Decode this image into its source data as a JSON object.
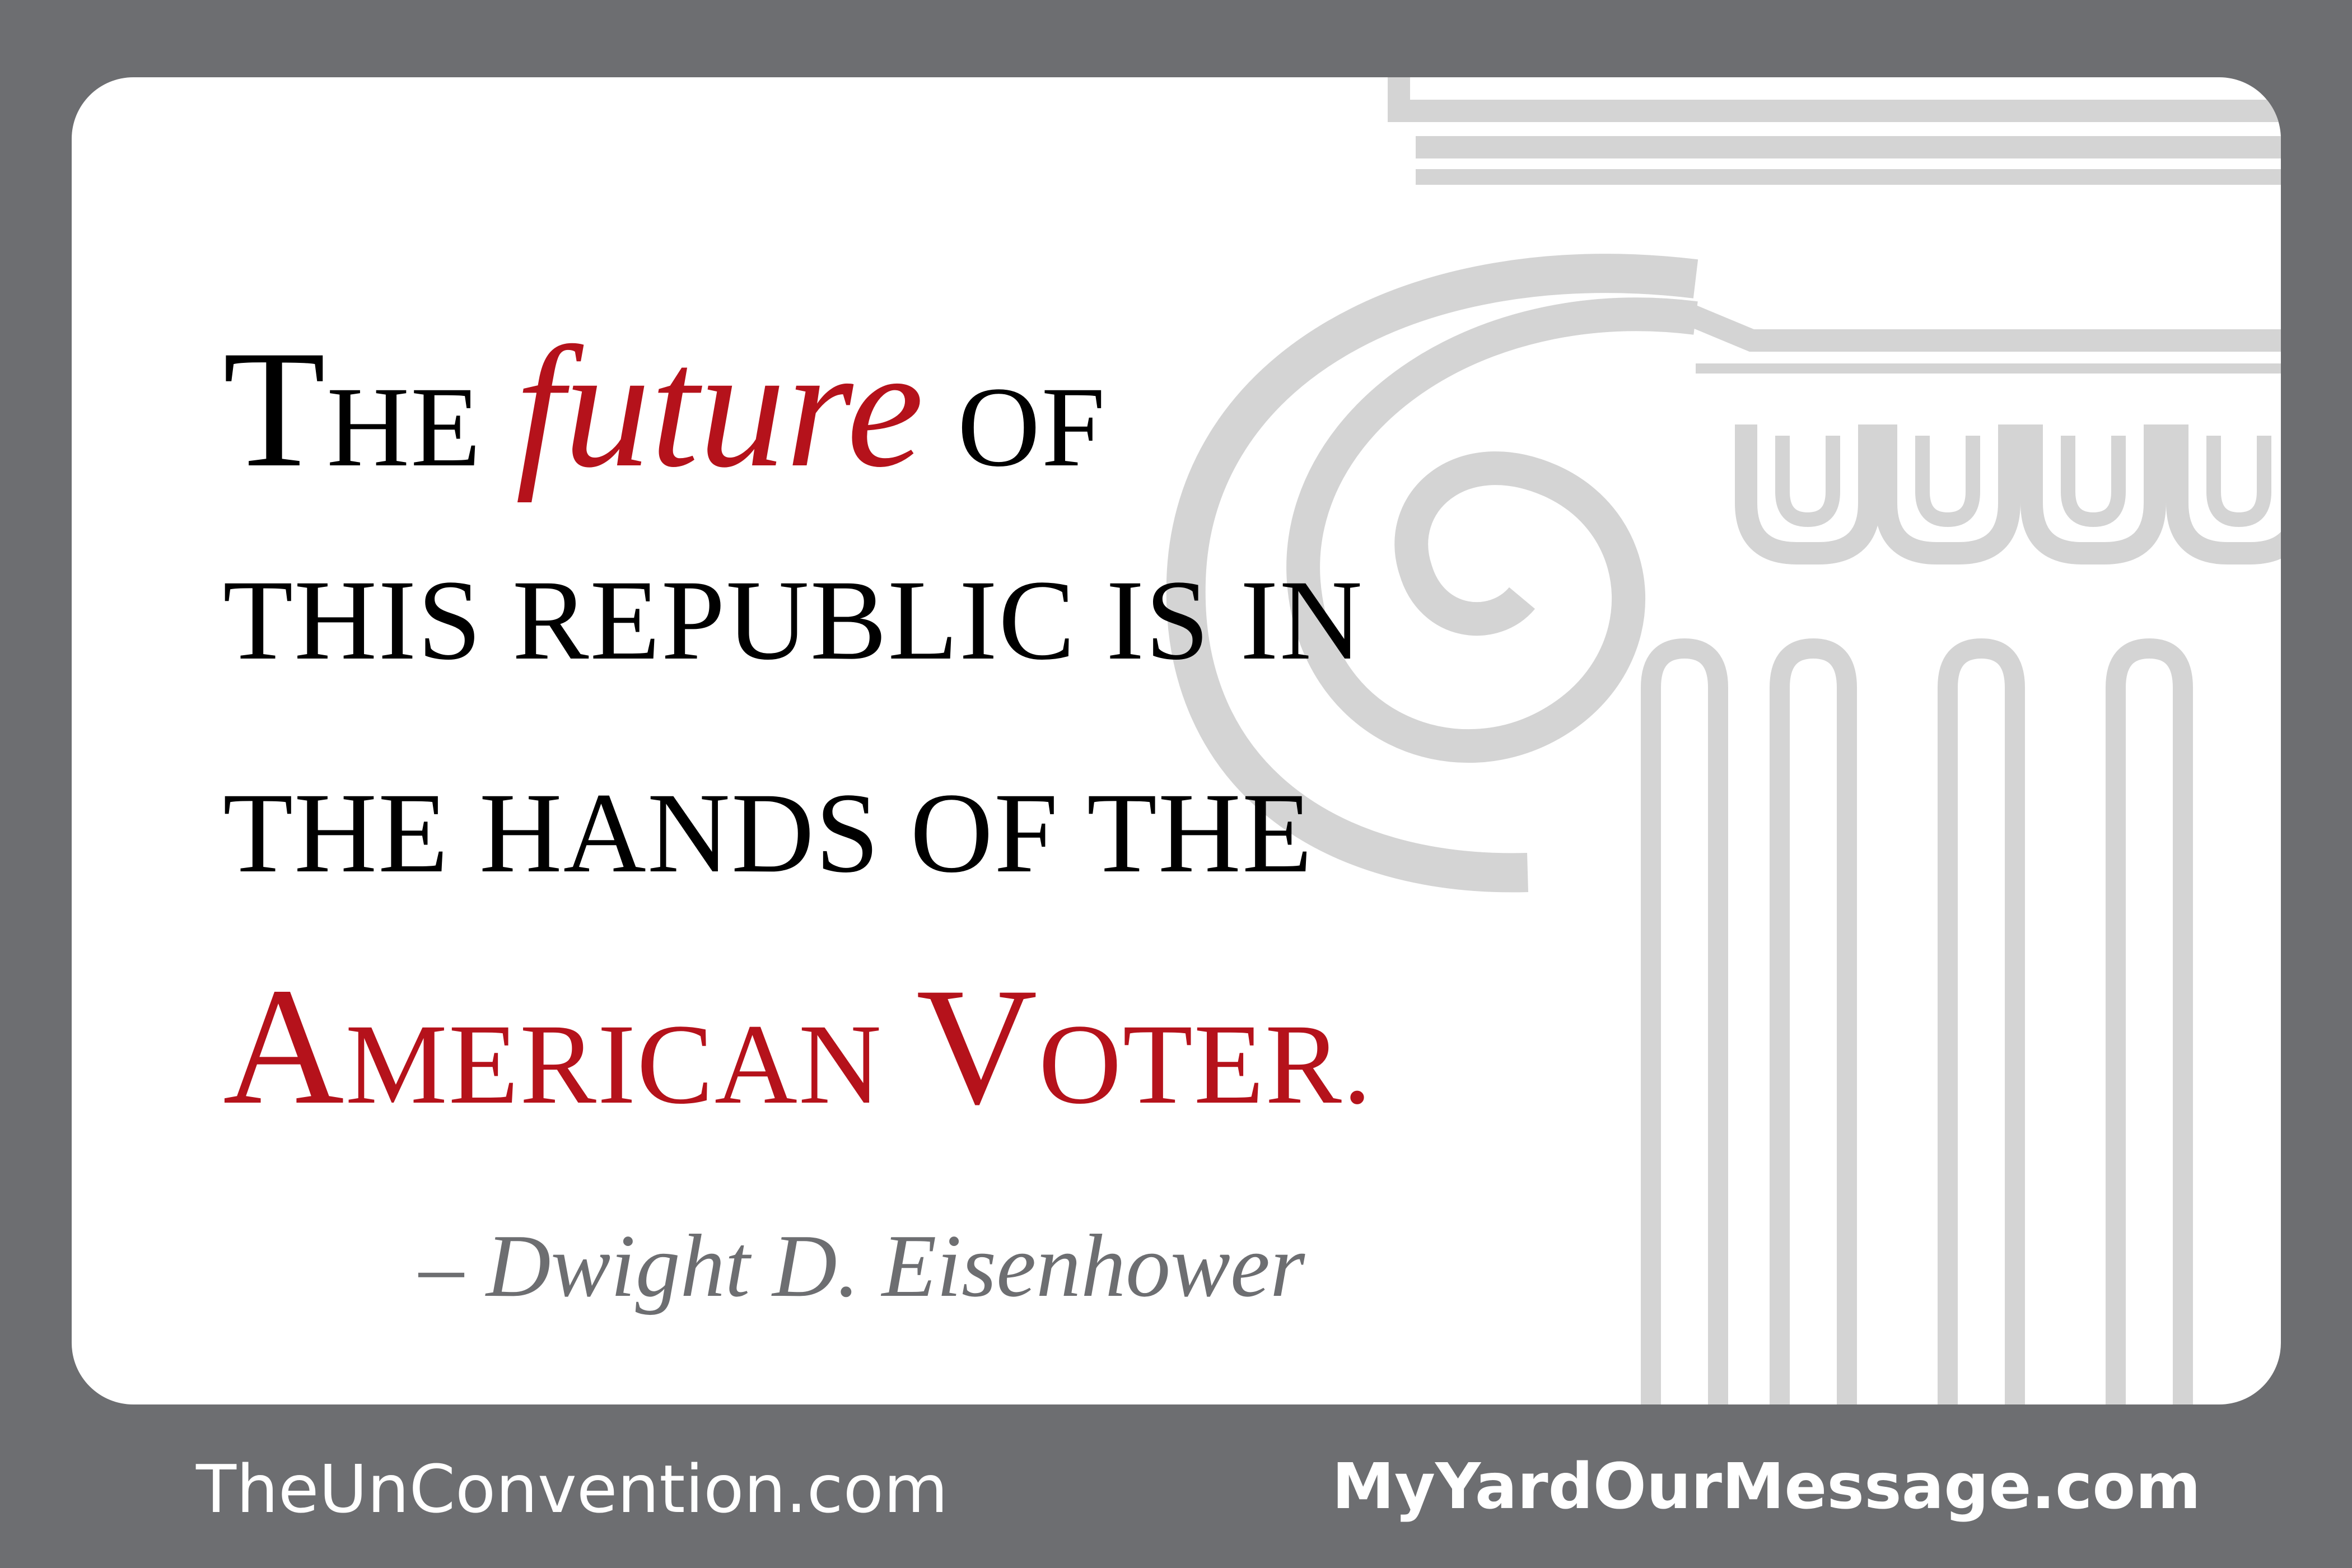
{
  "quote": {
    "line1": {
      "the_initial": "T",
      "the_rest": "HE",
      "italic_word": "future",
      "after": "OF"
    },
    "line2": "THIS REPUBLIC IS IN",
    "line3": "THE HANDS OF THE",
    "line4": {
      "a_initial": "A",
      "a_rest": "MERICAN",
      "v_initial": "V",
      "v_rest": "OTER."
    }
  },
  "attribution": "– Dwight D. Eisenhower",
  "footer": {
    "left_url": "TheUnConvention.com",
    "right_url": "MyYardOurMessage.com"
  },
  "colors": {
    "frame": "#6d6e71",
    "card": "#ffffff",
    "accent_red": "#b5121b",
    "column_gray": "#d4d4d4",
    "text_black": "#000000"
  }
}
